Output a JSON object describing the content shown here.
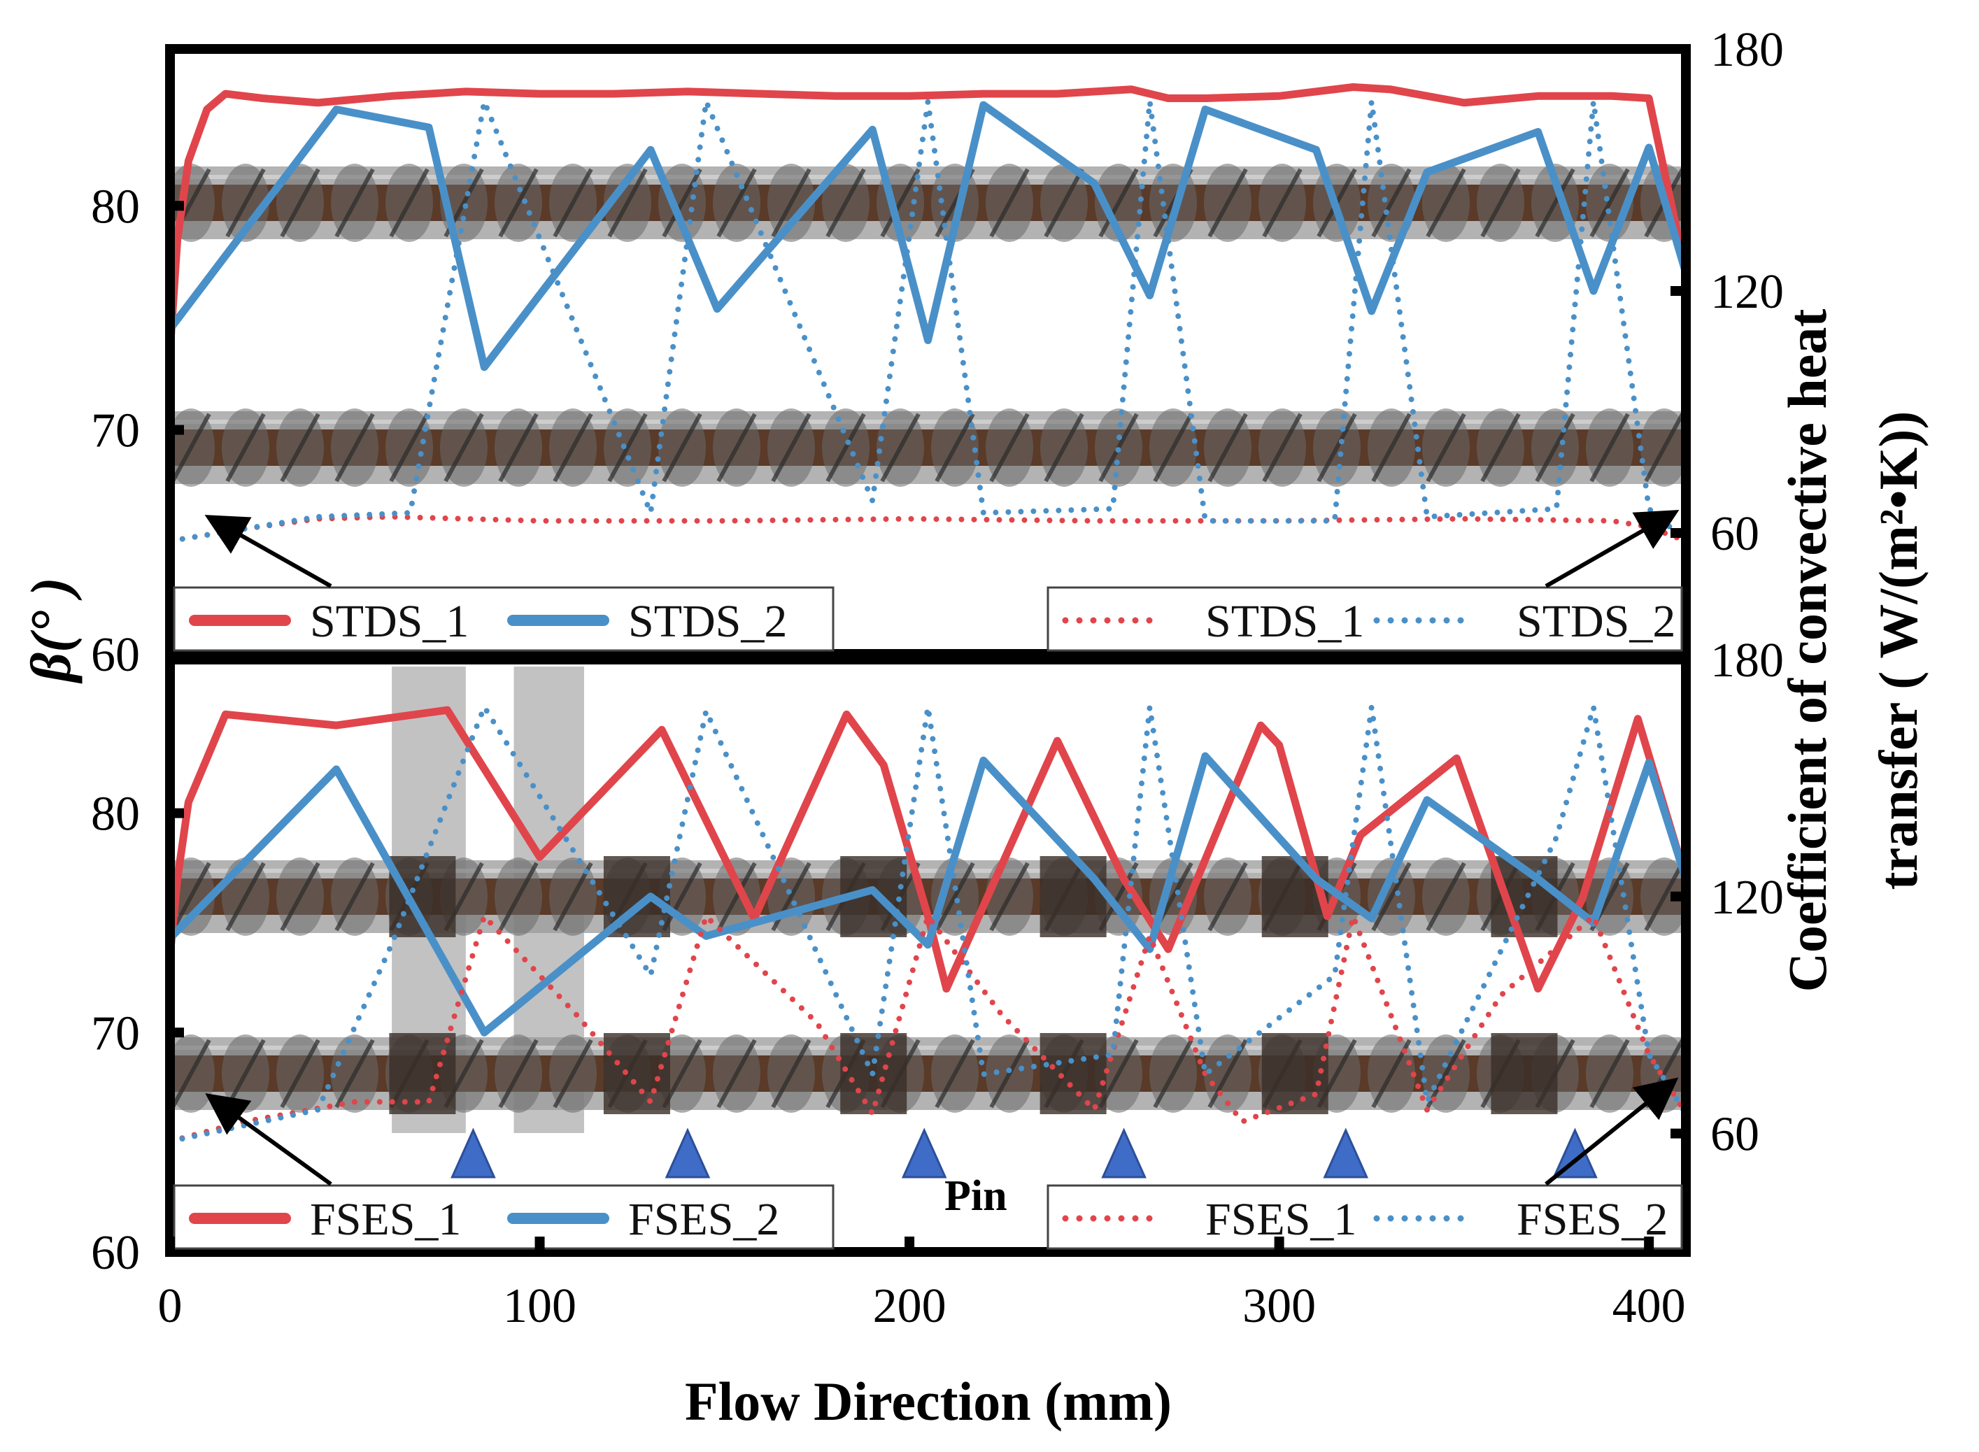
{
  "chart_data": {
    "type": "line",
    "xlabel": "Flow Direction (mm)",
    "xlim": [
      0,
      410
    ],
    "xticks": [
      0,
      100,
      200,
      300,
      400
    ],
    "ylabel_left": "β(° )",
    "ylabel_right": [
      "Coefficient of convective heat",
      "transfer ( W/(m²•K))"
    ],
    "pin_label": "Pin",
    "panels": [
      {
        "name": "STDS",
        "ylim_left": [
          60,
          87
        ],
        "yticks_left": [
          60,
          70,
          80
        ],
        "ylim_right": [
          30,
          180
        ],
        "yticks_right": [
          60,
          120,
          180
        ],
        "legend_left": [
          "STDS_1",
          "STDS_2"
        ],
        "legend_right": [
          "STDS_1",
          "STDS_2"
        ],
        "series": [
          {
            "name": "STDS_1",
            "axis": "left",
            "style": "solid",
            "color": "#e0454b",
            "x": [
              0,
              2,
              5,
              10,
              15,
              25,
              40,
              60,
              80,
              100,
              120,
              140,
              160,
              180,
              200,
              220,
              240,
              260,
              270,
              280,
              300,
              320,
              330,
              350,
              370,
              390,
              400,
              410
            ],
            "y": [
              73.5,
              78.5,
              82,
              84.3,
              85.0,
              84.8,
              84.6,
              84.9,
              85.1,
              85.0,
              85.0,
              85.1,
              85.0,
              84.9,
              84.9,
              85.0,
              85.0,
              85.2,
              84.8,
              84.8,
              84.9,
              85.3,
              85.2,
              84.6,
              84.9,
              84.9,
              84.8,
              77.0
            ]
          },
          {
            "name": "STDS_2",
            "axis": "left",
            "style": "solid",
            "color": "#4a90c8",
            "x": [
              0,
              45,
              70,
              85,
              130,
              148,
              190,
              205,
              220,
              250,
              265,
              280,
              310,
              325,
              340,
              370,
              385,
              400,
              410
            ],
            "y": [
              74.5,
              84.3,
              83.5,
              72.8,
              82.5,
              75.4,
              83.4,
              74.0,
              84.5,
              81.0,
              76.0,
              84.3,
              82.5,
              75.3,
              81.5,
              83.3,
              76.2,
              82.6,
              77.0
            ]
          },
          {
            "name": "STDS_1",
            "axis": "right",
            "style": "dotted",
            "color": "#e0454b",
            "x": [
              0,
              20,
              40,
              60,
              80,
              100,
              150,
              200,
              250,
              300,
              350,
              390,
              400,
              410
            ],
            "y": [
              58,
              61,
              63.5,
              64,
              63.5,
              63,
              63,
              63.5,
              63,
              63,
              63.5,
              63,
              61.5,
              58
            ]
          },
          {
            "name": "STDS_2",
            "axis": "right",
            "style": "dotted",
            "color": "#4a90c8",
            "x": [
              0,
              40,
              65,
              85,
              130,
              145,
              190,
              205,
              220,
              255,
              265,
              280,
              315,
              325,
              340,
              375,
              385,
              400,
              410
            ],
            "y": [
              58,
              64,
              65,
              167,
              65,
              167,
              68,
              167,
              65,
              66,
              167,
              63,
              63,
              167,
              64,
              66,
              167,
              66,
              58
            ]
          }
        ]
      },
      {
        "name": "FSES",
        "ylim_left": [
          60,
          87
        ],
        "yticks_left": [
          60,
          70,
          80
        ],
        "ylim_right": [
          30,
          180
        ],
        "yticks_right": [
          60,
          120,
          180
        ],
        "legend_left": [
          "FSES_1",
          "FSES_2"
        ],
        "legend_right": [
          "FSES_1",
          "FSES_2"
        ],
        "series": [
          {
            "name": "FSES_1",
            "axis": "left",
            "style": "solid",
            "color": "#e0454b",
            "x": [
              0,
              2,
              5,
              15,
              45,
              75,
              100,
              133,
              158,
              183,
              193,
              205,
              210,
              240,
              258,
              270,
              295,
              300,
              313,
              322,
              348,
              370,
              382,
              397,
              410
            ],
            "y": [
              73.5,
              77,
              80.5,
              84.5,
              84.0,
              84.7,
              78.0,
              83.8,
              75.2,
              84.5,
              82.2,
              75.3,
              72.0,
              83.3,
              77.0,
              73.8,
              84.0,
              83.1,
              75.3,
              79.0,
              82.5,
              72.0,
              76.1,
              84.3,
              77.0
            ]
          },
          {
            "name": "FSES_2",
            "axis": "left",
            "style": "solid",
            "color": "#4a90c8",
            "x": [
              0,
              45,
              60,
              85,
              130,
              145,
              190,
              205,
              220,
              250,
              265,
              280,
              310,
              325,
              340,
              370,
              385,
              400,
              410
            ],
            "y": [
              74.3,
              82.0,
              77.5,
              70.0,
              76.2,
              74.4,
              76.5,
              74.0,
              82.4,
              77.0,
              73.8,
              82.6,
              77.0,
              75.2,
              80.6,
              77.0,
              75.0,
              82.3,
              77.0
            ]
          },
          {
            "name": "FSES_1",
            "axis": "right",
            "style": "dotted",
            "color": "#e0454b",
            "x": [
              0,
              20,
              50,
              70,
              85,
              110,
              130,
              145,
              175,
              190,
              205,
              225,
              250,
              265,
              280,
              290,
              310,
              320,
              340,
              360,
              385,
              400,
              410
            ],
            "y": [
              58,
              63,
              68,
              68,
              115,
              90,
              68,
              115,
              88,
              65,
              115,
              90,
              66,
              110,
              75,
              63,
              70,
              115,
              66,
              95,
              115,
              80,
              65
            ]
          },
          {
            "name": "FSES_2",
            "axis": "right",
            "style": "dotted",
            "color": "#4a90c8",
            "x": [
              0,
              40,
              60,
              85,
              130,
              145,
              190,
              205,
              220,
              255,
              265,
              280,
              315,
              325,
              340,
              375,
              385,
              400,
              410
            ],
            "y": [
              58,
              66,
              108,
              168,
              100,
              167,
              75,
              168,
              75,
              80,
              168,
              75,
              100,
              168,
              68,
              135,
              168,
              80,
              65
            ]
          }
        ]
      }
    ],
    "shaded_regions": [
      [
        60,
        80
      ],
      [
        93,
        112
      ]
    ],
    "pin_positions": [
      82,
      140,
      204,
      258,
      318,
      380
    ]
  },
  "colors": {
    "red": "#e0454b",
    "blue": "#4a90c8",
    "pin": "#3f6cc6",
    "shade": "#c2c2c2",
    "screw_shaft": "#5a3a28",
    "screw_band": "#9a9a9a"
  }
}
